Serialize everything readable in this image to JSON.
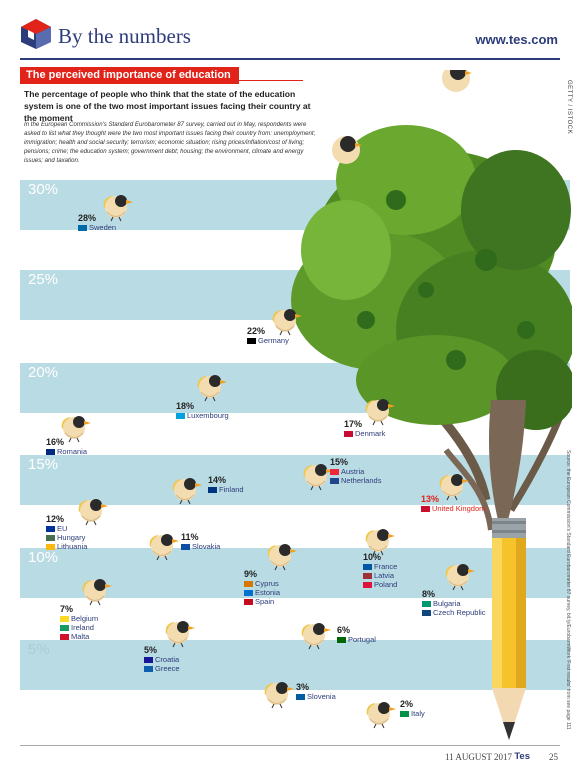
{
  "header": {
    "section_title": "By the numbers",
    "site": "www.tes.com"
  },
  "article": {
    "band_title": "The perceived importance of education",
    "lead": "The percentage of people who think that the state of the education system is one of the two most important issues facing their country at the moment",
    "intro": "In the European Commission's Standard Eurobarometer 87 survey, carried out in May, respondents were asked to list what they thought were the two most important issues facing their country from: unemployment; immigration; health and social security; terrorism; economic situation; rising prices/inflation/cost of living; pensions; crime; the education system; government debt; housing; the environment, climate and energy issues; and taxation.",
    "credit": "GETTY / ISTOCK",
    "source": "Source: the European Commission's Standard Eurobarometer 87 survey, bit.ly/EurobarmWork 'First results' from see page 111"
  },
  "chart_data": {
    "type": "scatter",
    "title": "",
    "ylabel": "",
    "ylim": [
      0,
      30
    ],
    "yticks": [
      "30%",
      "25%",
      "20%",
      "15%",
      "10%",
      "5%"
    ],
    "points": [
      {
        "value": "28%",
        "countries": [
          "Sweden"
        ],
        "flags": [
          "#006aa7"
        ],
        "highlight": false
      },
      {
        "value": "22%",
        "countries": [
          "Germany"
        ],
        "flags": [
          "#000000"
        ],
        "highlight": false
      },
      {
        "value": "18%",
        "countries": [
          "Luxembourg"
        ],
        "flags": [
          "#00a1de"
        ],
        "highlight": false
      },
      {
        "value": "17%",
        "countries": [
          "Denmark"
        ],
        "flags": [
          "#c60c30"
        ],
        "highlight": false
      },
      {
        "value": "16%",
        "countries": [
          "Romania"
        ],
        "flags": [
          "#002b7f"
        ],
        "highlight": false
      },
      {
        "value": "15%",
        "countries": [
          "Austria",
          "Netherlands"
        ],
        "flags": [
          "#ed2939",
          "#21468b"
        ],
        "highlight": false
      },
      {
        "value": "14%",
        "countries": [
          "Finland"
        ],
        "flags": [
          "#003580"
        ],
        "highlight": false
      },
      {
        "value": "13%",
        "countries": [
          "United Kingdom"
        ],
        "flags": [
          "#c8102e"
        ],
        "highlight": true
      },
      {
        "value": "12%",
        "countries": [
          "EU",
          "Hungary",
          "Lithuania"
        ],
        "flags": [
          "#003399",
          "#477050",
          "#fdb913"
        ],
        "highlight": false
      },
      {
        "value": "11%",
        "countries": [
          "Slovakia"
        ],
        "flags": [
          "#0b4ea2"
        ],
        "highlight": false
      },
      {
        "value": "10%",
        "countries": [
          "France",
          "Latvia",
          "Poland"
        ],
        "flags": [
          "#0055a4",
          "#9e3039",
          "#dc143c"
        ],
        "highlight": false
      },
      {
        "value": "9%",
        "countries": [
          "Cyprus",
          "Estonia",
          "Spain"
        ],
        "flags": [
          "#d57800",
          "#0072ce",
          "#c60b1e"
        ],
        "highlight": false
      },
      {
        "value": "8%",
        "countries": [
          "Bulgaria",
          "Czech Republic"
        ],
        "flags": [
          "#00966e",
          "#11457e"
        ],
        "highlight": false
      },
      {
        "value": "7%",
        "countries": [
          "Belgium",
          "Ireland",
          "Malta"
        ],
        "flags": [
          "#fdda24",
          "#169b62",
          "#cf142b"
        ],
        "highlight": false
      },
      {
        "value": "6%",
        "countries": [
          "Portugal"
        ],
        "flags": [
          "#006600"
        ],
        "highlight": false
      },
      {
        "value": "5%",
        "countries": [
          "Croatia",
          "Greece"
        ],
        "flags": [
          "#171796",
          "#0d5eaf"
        ],
        "highlight": false
      },
      {
        "value": "3%",
        "countries": [
          "Slovenia"
        ],
        "flags": [
          "#005da4"
        ],
        "highlight": false
      },
      {
        "value": "2%",
        "countries": [
          "Italy"
        ],
        "flags": [
          "#009246"
        ],
        "highlight": false
      }
    ]
  },
  "footer": {
    "date": "11 AUGUST 2017",
    "brand": "Tes",
    "page": "25"
  }
}
